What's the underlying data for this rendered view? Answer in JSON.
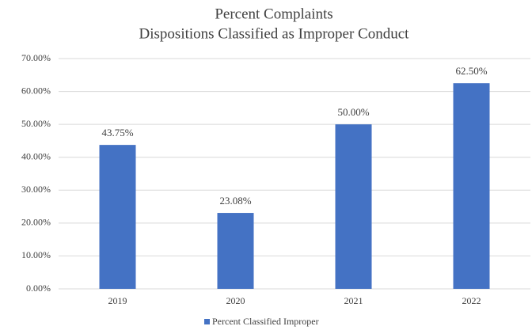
{
  "chart_data": {
    "type": "bar",
    "title": [
      "Percent Complaints",
      "Dispositions Classified as Improper Conduct"
    ],
    "categories": [
      "2019",
      "2020",
      "2021",
      "2022"
    ],
    "series": [
      {
        "name": "Percent Classified Improper",
        "color": "#4472c4",
        "values": [
          43.75,
          23.08,
          50,
          62.5
        ],
        "value_labels": [
          "43.75%",
          "23.08%",
          "50.00%",
          "62.50%"
        ]
      }
    ],
    "ylim": [
      0,
      70
    ],
    "yticks": [
      {
        "value": 0,
        "label": "0.00%"
      },
      {
        "value": 10,
        "label": "10.00%"
      },
      {
        "value": 20,
        "label": "20.00%"
      },
      {
        "value": 30,
        "label": "30.00%"
      },
      {
        "value": 40,
        "label": "40.00%"
      },
      {
        "value": 50,
        "label": "50.00%"
      },
      {
        "value": 60,
        "label": "60.00%"
      },
      {
        "value": 70,
        "label": "70.00%"
      }
    ],
    "grid": true,
    "legend": "bottom"
  }
}
